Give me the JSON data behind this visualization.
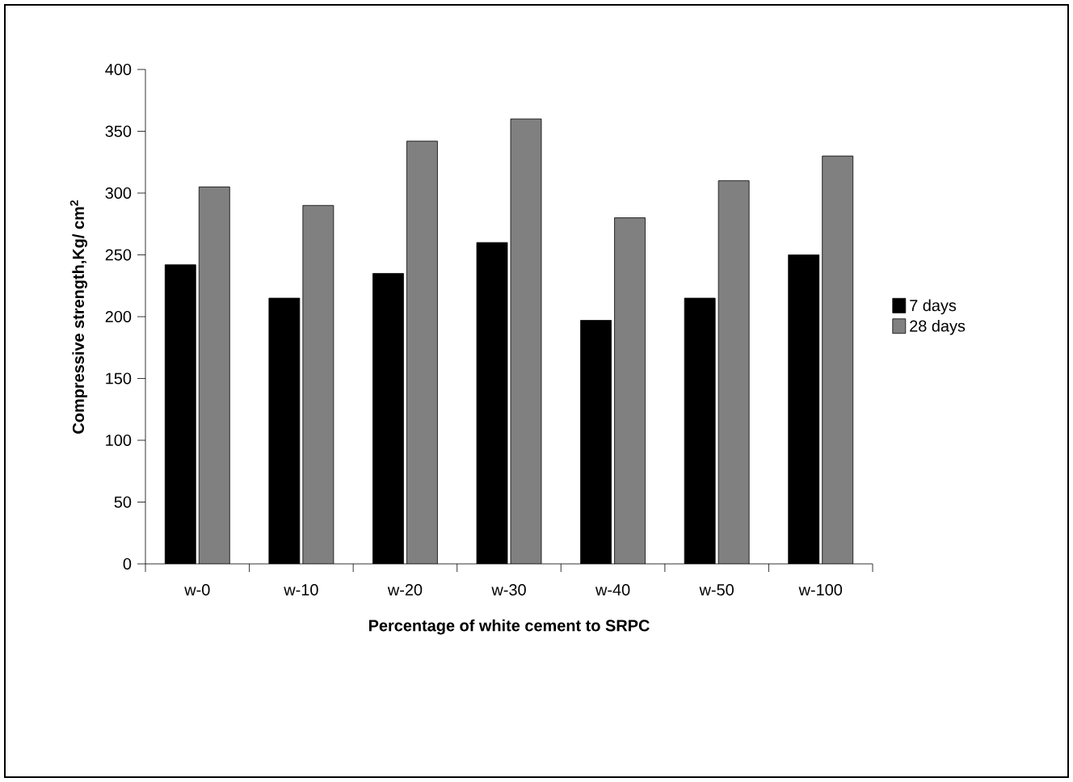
{
  "chart_data": {
    "type": "bar",
    "xlabel": "Percentage of white cement to SRPC",
    "ylabel": "Compressive strength,Kg/ cm$^{2}$",
    "categories": [
      "w-0",
      "w-10",
      "w-20",
      "w-30",
      "w-40",
      "w-50",
      "w-100"
    ],
    "series": [
      {
        "name": "7 days",
        "color": "#000000",
        "values": [
          242,
          215,
          235,
          260,
          197,
          215,
          250
        ]
      },
      {
        "name": "28 days",
        "color": "#808080",
        "values": [
          305,
          290,
          342,
          360,
          280,
          310,
          330
        ]
      }
    ],
    "ylim": [
      0,
      400
    ],
    "yticks": [
      0,
      50,
      100,
      150,
      200,
      250,
      300,
      350,
      400
    ],
    "legend": "right"
  }
}
